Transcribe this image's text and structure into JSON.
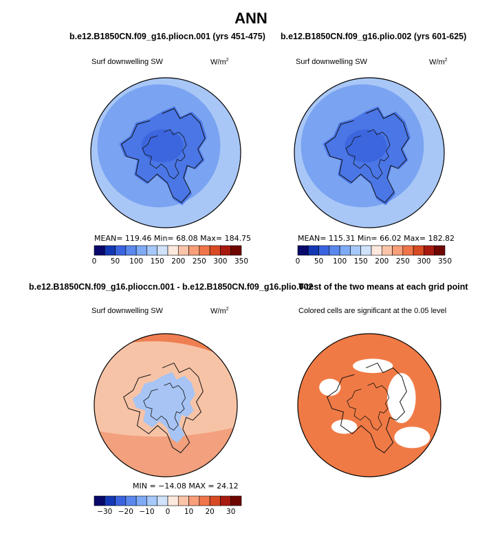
{
  "main_title": "ANN",
  "colors": {
    "seq": [
      "#08086b",
      "#1438b5",
      "#3a64df",
      "#5a88ee",
      "#7eaaf6",
      "#a6c8fa",
      "#cfe2fa",
      "#fde8dd",
      "#fbc4a8",
      "#f89e79",
      "#f0744a",
      "#d84a23",
      "#a81a10",
      "#6e0600"
    ],
    "diff": [
      "#08086b",
      "#1438b5",
      "#3a64df",
      "#5a88ee",
      "#7eaaf6",
      "#a6c8fa",
      "#cfe2fa",
      "#fde8dd",
      "#fbc4a8",
      "#f89e79",
      "#f0744a",
      "#d84a23",
      "#a81a10",
      "#6e0600"
    ],
    "ocean_high": "#7aa3f1",
    "ocean_low": "#a8c7f7",
    "land_core": "#4a76e6",
    "diff_pos": "#f7c3a6",
    "diff_strong": "#ef7f52",
    "diff_neg": "#a7c4f4",
    "sig": "#f07a45"
  },
  "chart_data": [
    {
      "type": "heatmap",
      "title": "b.e12.B1850CN.f09_g16.pliocn.001 (yrs 451-475)",
      "variable": "Surf downwelling SW",
      "units": "W/m",
      "units_sup": "2",
      "stats": {
        "mean": 119.46,
        "min": 68.08,
        "max": 184.75
      },
      "stats_text": "MEAN= 119.46   Min=   68.08   Max= 184.75",
      "colorbar": {
        "min": 0,
        "max": 350,
        "levels": 14,
        "tick_labels": [
          "0",
          "50",
          "100",
          "150",
          "200",
          "250",
          "300",
          "350"
        ]
      }
    },
    {
      "type": "heatmap",
      "title": "b.e12.B1850CN.f09_g16.plio.002 (yrs 601-625)",
      "variable": "Surf downwelling SW",
      "units": "W/m",
      "units_sup": "2",
      "stats": {
        "mean": 115.31,
        "min": 66.02,
        "max": 182.82
      },
      "stats_text": "MEAN= 115.31   Min=   66.02   Max= 182.82",
      "colorbar": {
        "min": 0,
        "max": 350,
        "levels": 14,
        "tick_labels": [
          "0",
          "50",
          "100",
          "150",
          "200",
          "250",
          "300",
          "350"
        ]
      }
    },
    {
      "type": "heatmap",
      "title": "b.e12.B1850CN.f09_g16.plioccn.001 - b.e12.B1850CN.f09_g16.plio.002",
      "variable": "Surf downwelling SW",
      "units": "W/m",
      "units_sup": "2",
      "stats": {
        "min": -14.08,
        "max": 24.12
      },
      "stats_text": "MIN = −14.08  MAX =  24.12",
      "colorbar": {
        "min": -35,
        "max": 35,
        "levels": 14,
        "tick_labels": [
          "−30",
          "−20",
          "−10",
          "0",
          "10",
          "20",
          "30"
        ]
      }
    },
    {
      "type": "heatmap",
      "title": "T-test of the two means at each grid point",
      "subtitle": "Colored cells are significant at the 0.05 level"
    }
  ]
}
